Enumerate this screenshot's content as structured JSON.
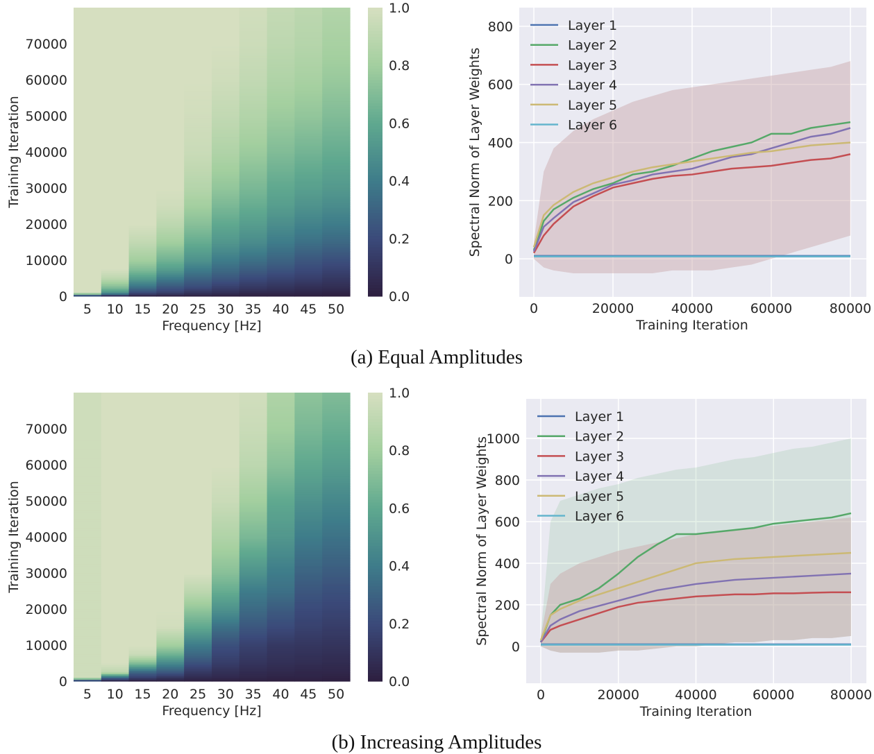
{
  "captions": [
    "(a) Equal Amplitudes",
    "(b) Increasing Amplitudes"
  ],
  "colormap": [
    "#2d1e3e",
    "#3b4a7a",
    "#3e7c8a",
    "#5fa88f",
    "#a3cf9f",
    "#d6dfc0"
  ],
  "chart_data": [
    {
      "type": "heatmap",
      "panel": "a",
      "xlabel": "Frequency [Hz]",
      "ylabel": "Training Iteration",
      "x_categories": [
        5,
        10,
        15,
        20,
        25,
        30,
        35,
        40,
        45,
        50
      ],
      "yticks": [
        0,
        10000,
        20000,
        30000,
        40000,
        50000,
        60000,
        70000
      ],
      "ylim": [
        0,
        80000
      ],
      "colorbar": {
        "range": [
          0,
          1
        ],
        "ticks": [
          "0.0",
          "0.2",
          "0.4",
          "0.6",
          "0.8",
          "1.0"
        ]
      },
      "iterations": [
        0,
        1000,
        2500,
        5000,
        7500,
        10000,
        15000,
        20000,
        25000,
        30000,
        40000,
        50000,
        60000,
        70000,
        80000
      ],
      "values": [
        [
          0,
          1,
          1,
          1,
          1,
          1,
          1,
          1,
          1,
          1,
          1,
          1,
          1,
          1,
          1
        ],
        [
          0,
          0.5,
          0.7,
          0.9,
          1,
          1,
          1,
          1,
          1,
          1,
          1,
          1,
          1,
          1,
          1
        ],
        [
          0,
          0.2,
          0.35,
          0.55,
          0.7,
          0.8,
          0.92,
          1,
          1,
          1,
          1,
          1,
          1,
          1,
          1
        ],
        [
          0,
          0.15,
          0.25,
          0.4,
          0.55,
          0.65,
          0.8,
          0.9,
          0.97,
          1,
          1,
          1,
          1,
          1,
          1
        ],
        [
          0,
          0.1,
          0.2,
          0.3,
          0.4,
          0.5,
          0.62,
          0.72,
          0.8,
          0.87,
          0.95,
          0.98,
          1,
          1,
          1
        ],
        [
          0,
          0.08,
          0.15,
          0.25,
          0.33,
          0.4,
          0.52,
          0.6,
          0.68,
          0.75,
          0.85,
          0.92,
          0.97,
          1,
          1
        ],
        [
          0,
          0.05,
          0.12,
          0.2,
          0.28,
          0.35,
          0.47,
          0.55,
          0.62,
          0.68,
          0.78,
          0.86,
          0.92,
          0.96,
          0.98
        ],
        [
          0,
          0.05,
          0.1,
          0.17,
          0.24,
          0.3,
          0.4,
          0.48,
          0.55,
          0.6,
          0.7,
          0.78,
          0.85,
          0.9,
          0.93
        ],
        [
          0,
          0.04,
          0.08,
          0.15,
          0.2,
          0.25,
          0.35,
          0.43,
          0.5,
          0.56,
          0.66,
          0.75,
          0.82,
          0.87,
          0.9
        ],
        [
          0,
          0.03,
          0.07,
          0.12,
          0.17,
          0.22,
          0.32,
          0.4,
          0.47,
          0.53,
          0.62,
          0.7,
          0.77,
          0.82,
          0.86
        ]
      ]
    },
    {
      "type": "line",
      "panel": "a",
      "xlabel": "Training Iteration",
      "ylabel": "Spectral Norm of Layer Weights",
      "xticks": [
        0,
        20000,
        40000,
        60000,
        80000
      ],
      "yticks": [
        0,
        200,
        400,
        600,
        800
      ],
      "xlim": [
        -4000,
        84000
      ],
      "ylim": [
        -131,
        864
      ],
      "grid": true,
      "legend": "top-left",
      "x": [
        0,
        2500,
        5000,
        10000,
        15000,
        20000,
        25000,
        30000,
        35000,
        40000,
        45000,
        50000,
        55000,
        60000,
        65000,
        70000,
        75000,
        80000
      ],
      "band": {
        "lower": [
          0,
          -30,
          -40,
          -50,
          -50,
          -50,
          -50,
          -50,
          -40,
          -40,
          -40,
          -30,
          -20,
          0,
          20,
          40,
          60,
          80
        ],
        "upper": [
          60,
          300,
          380,
          440,
          480,
          510,
          540,
          560,
          580,
          590,
          600,
          610,
          620,
          630,
          640,
          650,
          660,
          680
        ]
      },
      "series": [
        {
          "name": "Layer 1",
          "color": "#4c72b0",
          "values": [
            10,
            10,
            10,
            10,
            10,
            10,
            10,
            10,
            10,
            10,
            10,
            10,
            10,
            10,
            10,
            10,
            10,
            10
          ]
        },
        {
          "name": "Layer 2",
          "color": "#55a868",
          "values": [
            30,
            130,
            170,
            210,
            240,
            260,
            290,
            300,
            320,
            345,
            370,
            385,
            400,
            430,
            430,
            450,
            460,
            470
          ]
        },
        {
          "name": "Layer 3",
          "color": "#c44e52",
          "values": [
            20,
            80,
            120,
            180,
            215,
            245,
            260,
            275,
            285,
            290,
            300,
            310,
            315,
            320,
            330,
            340,
            345,
            360
          ]
        },
        {
          "name": "Layer 4",
          "color": "#8172b2",
          "values": [
            25,
            110,
            140,
            195,
            225,
            255,
            270,
            290,
            300,
            310,
            330,
            350,
            360,
            380,
            400,
            420,
            430,
            450
          ]
        },
        {
          "name": "Layer 5",
          "color": "#ccb974",
          "values": [
            40,
            150,
            185,
            230,
            260,
            280,
            300,
            315,
            325,
            335,
            345,
            355,
            365,
            370,
            380,
            390,
            395,
            400
          ]
        },
        {
          "name": "Layer 6",
          "color": "#64b5cd",
          "values": [
            8,
            8,
            8,
            8,
            8,
            8,
            8,
            8,
            8,
            8,
            8,
            8,
            8,
            8,
            8,
            8,
            8,
            8
          ]
        }
      ]
    },
    {
      "type": "heatmap",
      "panel": "b",
      "xlabel": "Frequency [Hz]",
      "ylabel": "Training Iteration",
      "x_categories": [
        5,
        10,
        15,
        20,
        25,
        30,
        35,
        40,
        45,
        50
      ],
      "yticks": [
        0,
        10000,
        20000,
        30000,
        40000,
        50000,
        60000,
        70000
      ],
      "ylim": [
        0,
        80000
      ],
      "colorbar": {
        "range": [
          0,
          1
        ],
        "ticks": [
          "0.0",
          "0.2",
          "0.4",
          "0.6",
          "0.8",
          "1.0"
        ]
      },
      "iterations": [
        0,
        1000,
        2500,
        5000,
        7500,
        10000,
        15000,
        20000,
        25000,
        30000,
        40000,
        50000,
        60000,
        70000,
        80000
      ],
      "values": [
        [
          0,
          0.97,
          0.97,
          0.97,
          0.97,
          0.97,
          0.97,
          0.97,
          0.97,
          0.97,
          0.97,
          0.97,
          0.97,
          0.97,
          0.97
        ],
        [
          0,
          0.3,
          0.9,
          1,
          1,
          1,
          1,
          1,
          1,
          1,
          1,
          1,
          1,
          1,
          1
        ],
        [
          0,
          0.15,
          0.3,
          0.7,
          0.95,
          1,
          1,
          1,
          1,
          1,
          1,
          1,
          1,
          1,
          1
        ],
        [
          0,
          0.1,
          0.25,
          0.45,
          0.65,
          0.8,
          0.98,
          1,
          1,
          1,
          1,
          1,
          1,
          1,
          1
        ],
        [
          0,
          0.06,
          0.12,
          0.22,
          0.32,
          0.4,
          0.6,
          0.75,
          0.9,
          1,
          1,
          1,
          1,
          1,
          1
        ],
        [
          0,
          0.05,
          0.08,
          0.14,
          0.18,
          0.22,
          0.35,
          0.5,
          0.62,
          0.72,
          0.85,
          0.95,
          1,
          1,
          1
        ],
        [
          0,
          0.04,
          0.06,
          0.1,
          0.13,
          0.16,
          0.25,
          0.33,
          0.4,
          0.5,
          0.68,
          0.8,
          0.9,
          0.95,
          0.98
        ],
        [
          0,
          0.03,
          0.05,
          0.08,
          0.1,
          0.12,
          0.2,
          0.27,
          0.35,
          0.4,
          0.52,
          0.6,
          0.72,
          0.8,
          0.85
        ],
        [
          0,
          0.03,
          0.04,
          0.07,
          0.09,
          0.11,
          0.16,
          0.2,
          0.25,
          0.3,
          0.4,
          0.5,
          0.6,
          0.68,
          0.74
        ],
        [
          0,
          0.02,
          0.04,
          0.06,
          0.08,
          0.1,
          0.14,
          0.18,
          0.22,
          0.27,
          0.36,
          0.45,
          0.55,
          0.63,
          0.7
        ]
      ]
    },
    {
      "type": "line",
      "panel": "b",
      "xlabel": "Training Iteration",
      "ylabel": "Spectral Norm of Layer Weights",
      "xticks": [
        0,
        20000,
        40000,
        60000,
        80000
      ],
      "yticks": [
        0,
        200,
        400,
        600,
        800,
        1000
      ],
      "xlim": [
        -4000,
        84000
      ],
      "ylim": [
        -177,
        1190
      ],
      "grid": true,
      "legend": "top-left",
      "x": [
        0,
        2500,
        5000,
        10000,
        15000,
        20000,
        25000,
        30000,
        35000,
        40000,
        45000,
        50000,
        55000,
        60000,
        65000,
        70000,
        75000,
        80000
      ],
      "band": {
        "lower": [
          0,
          -20,
          -30,
          -30,
          -30,
          -20,
          -20,
          -10,
          0,
          0,
          10,
          20,
          20,
          30,
          30,
          40,
          40,
          50
        ],
        "upper": [
          50,
          300,
          350,
          400,
          430,
          460,
          480,
          500,
          520,
          540,
          550,
          560,
          570,
          580,
          590,
          600,
          610,
          620
        ]
      },
      "series": [
        {
          "name": "Layer 1",
          "color": "#4c72b0",
          "values": [
            10,
            10,
            10,
            10,
            10,
            10,
            10,
            10,
            10,
            10,
            10,
            10,
            10,
            10,
            10,
            10,
            10,
            10
          ]
        },
        {
          "name": "Layer 2",
          "color": "#55a868",
          "values": [
            20,
            150,
            200,
            230,
            280,
            350,
            430,
            490,
            540,
            540,
            550,
            560,
            570,
            590,
            600,
            610,
            620,
            640
          ],
          "upper": [
            50,
            600,
            700,
            730,
            760,
            780,
            810,
            830,
            850,
            860,
            880,
            900,
            910,
            930,
            950,
            960,
            980,
            1000
          ]
        },
        {
          "name": "Layer 3",
          "color": "#c44e52",
          "values": [
            20,
            80,
            100,
            130,
            160,
            190,
            210,
            220,
            230,
            240,
            245,
            250,
            250,
            255,
            255,
            258,
            260,
            260
          ]
        },
        {
          "name": "Layer 4",
          "color": "#8172b2",
          "values": [
            20,
            100,
            130,
            170,
            195,
            220,
            245,
            270,
            285,
            300,
            310,
            320,
            325,
            330,
            335,
            340,
            345,
            350
          ]
        },
        {
          "name": "Layer 5",
          "color": "#ccb974",
          "values": [
            30,
            150,
            180,
            220,
            250,
            280,
            310,
            340,
            370,
            400,
            410,
            420,
            425,
            430,
            435,
            440,
            445,
            450
          ]
        },
        {
          "name": "Layer 6",
          "color": "#64b5cd",
          "values": [
            8,
            8,
            8,
            8,
            8,
            8,
            8,
            8,
            8,
            8,
            8,
            8,
            8,
            8,
            8,
            8,
            8,
            8
          ]
        }
      ]
    }
  ]
}
